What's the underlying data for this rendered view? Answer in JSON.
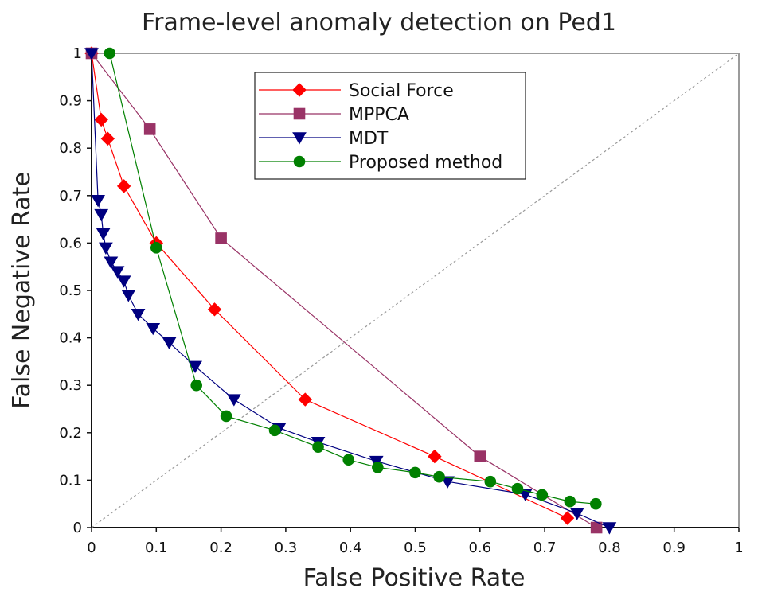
{
  "chart_data": {
    "type": "line",
    "title": "Frame-level anomaly detection on Ped1",
    "xlabel": "False Positive Rate",
    "ylabel": "False Negative Rate",
    "xlim": [
      0,
      1
    ],
    "ylim": [
      0,
      1
    ],
    "xticks": [
      0,
      0.1,
      0.2,
      0.3,
      0.4,
      0.5,
      0.6,
      0.7,
      0.8,
      0.9,
      1
    ],
    "yticks": [
      0,
      0.1,
      0.2,
      0.3,
      0.4,
      0.5,
      0.6,
      0.7,
      0.8,
      0.9,
      1
    ],
    "xtick_labels": [
      "0",
      "0.1",
      "0.2",
      "0.3",
      "0.4",
      "0.5",
      "0.6",
      "0.7",
      "0.8",
      "0.9",
      "1"
    ],
    "ytick_labels": [
      "0",
      "0.1",
      "0.2",
      "0.3",
      "0.4",
      "0.5",
      "0.6",
      "0.7",
      "0.8",
      "0.9",
      "1"
    ],
    "grid": false,
    "legend_position": "top-center",
    "diagonal_reference": {
      "start": [
        0,
        0
      ],
      "end": [
        1,
        1
      ],
      "style": "dashed",
      "color": "#999999"
    },
    "series": [
      {
        "name": "Social Force",
        "color": "#ff0000",
        "marker": "diamond",
        "x": [
          0.0,
          0.015,
          0.025,
          0.05,
          0.1,
          0.19,
          0.33,
          0.53,
          0.735
        ],
        "y": [
          1.0,
          0.86,
          0.82,
          0.72,
          0.6,
          0.46,
          0.27,
          0.15,
          0.02
        ]
      },
      {
        "name": "MPPCA",
        "color": "#993366",
        "marker": "square",
        "x": [
          0.0,
          0.09,
          0.2,
          0.6,
          0.78
        ],
        "y": [
          1.0,
          0.84,
          0.61,
          0.15,
          0.0
        ]
      },
      {
        "name": "MDT",
        "color": "#000080",
        "marker": "triangle-down",
        "x": [
          0.0,
          0.01,
          0.015,
          0.018,
          0.022,
          0.03,
          0.04,
          0.05,
          0.057,
          0.072,
          0.095,
          0.12,
          0.16,
          0.22,
          0.29,
          0.35,
          0.44,
          0.55,
          0.67,
          0.75,
          0.8
        ],
        "y": [
          1.0,
          0.69,
          0.66,
          0.62,
          0.59,
          0.56,
          0.54,
          0.52,
          0.49,
          0.45,
          0.42,
          0.39,
          0.34,
          0.27,
          0.21,
          0.18,
          0.14,
          0.097,
          0.07,
          0.03,
          0.0
        ]
      },
      {
        "name": "Proposed method",
        "color": "#008000",
        "marker": "circle",
        "x": [
          0.028,
          0.1,
          0.162,
          0.208,
          0.283,
          0.35,
          0.397,
          0.442,
          0.5,
          0.537,
          0.616,
          0.658,
          0.696,
          0.739,
          0.779
        ],
        "y": [
          1.0,
          0.59,
          0.3,
          0.235,
          0.205,
          0.17,
          0.143,
          0.127,
          0.116,
          0.107,
          0.097,
          0.082,
          0.069,
          0.055,
          0.05
        ]
      }
    ]
  }
}
